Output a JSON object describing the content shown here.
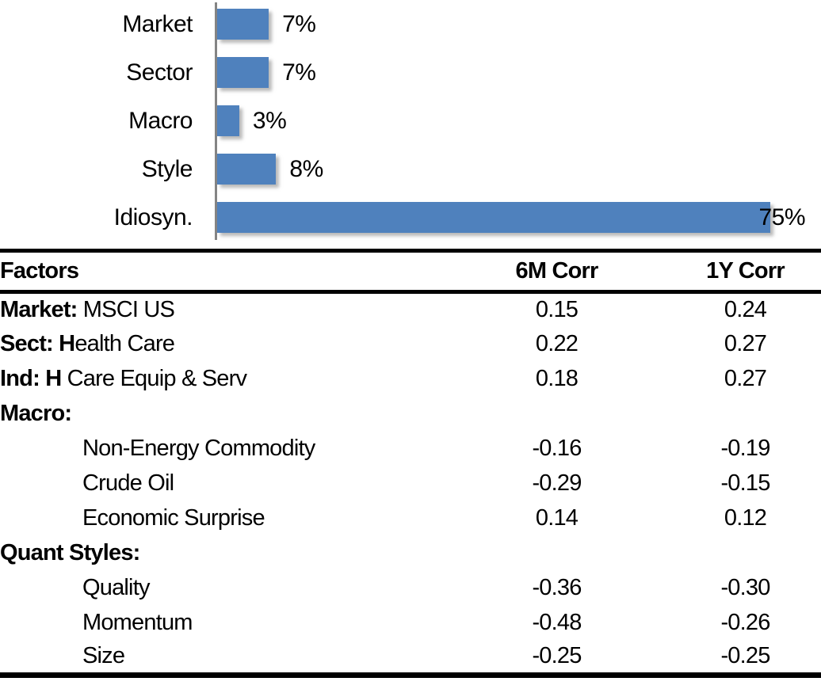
{
  "chart_data": [
    {
      "type": "bar",
      "orientation": "horizontal",
      "title": "",
      "xlabel": "",
      "ylabel": "",
      "categories": [
        "Market",
        "Sector",
        "Macro",
        "Style",
        "Idiosyn."
      ],
      "values": [
        7,
        7,
        3,
        8,
        75
      ],
      "value_labels": [
        "7%",
        "7%",
        "3%",
        "8%",
        "75%"
      ],
      "xlim": [
        0,
        80
      ],
      "grid": false,
      "legend": "none",
      "bar_color": "#4F81BD",
      "axis_color": "#848484"
    },
    {
      "type": "table",
      "columns": [
        "Factors",
        "6M Corr",
        "1Y Corr"
      ],
      "rows": [
        {
          "bold": "Market:",
          "text": " MSCI US",
          "indent": false,
          "values": [
            "0.15",
            "0.24"
          ]
        },
        {
          "bold": "Sect: H",
          "text": "ealth Care",
          "indent": false,
          "values": [
            "0.22",
            "0.27"
          ]
        },
        {
          "bold": "Ind: H",
          "text": " Care Equip & Serv",
          "indent": false,
          "values": [
            "0.18",
            "0.27"
          ]
        },
        {
          "bold": "Macro:",
          "text": "",
          "indent": false,
          "values": [
            "",
            ""
          ]
        },
        {
          "bold": "",
          "text": "Non-Energy Commodity",
          "indent": true,
          "values": [
            "-0.16",
            "-0.19"
          ]
        },
        {
          "bold": "",
          "text": "Crude Oil",
          "indent": true,
          "values": [
            "-0.29",
            "-0.15"
          ]
        },
        {
          "bold": "",
          "text": "Economic Surprise",
          "indent": true,
          "values": [
            "0.14",
            "0.12"
          ]
        },
        {
          "bold": "Quant Styles:",
          "text": "",
          "indent": false,
          "values": [
            "",
            ""
          ]
        },
        {
          "bold": "",
          "text": "Quality",
          "indent": true,
          "values": [
            "-0.36",
            "-0.30"
          ]
        },
        {
          "bold": "",
          "text": "Momentum",
          "indent": true,
          "values": [
            "-0.48",
            "-0.26"
          ]
        },
        {
          "bold": "",
          "text": "Size",
          "indent": true,
          "values": [
            "-0.25",
            "-0.25"
          ]
        }
      ]
    }
  ]
}
